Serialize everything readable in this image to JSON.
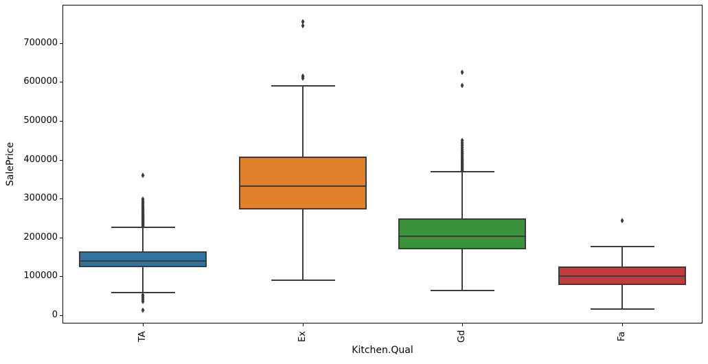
{
  "chart_data": {
    "type": "box",
    "title": "",
    "xlabel": "Kitchen.Qual",
    "ylabel": "SalePrice",
    "ylim": [
      -19400,
      796800
    ],
    "grid": false,
    "legend": "none",
    "line_color": "#3c3a3c",
    "spine_color": "#000000",
    "background_color": "#ffffff",
    "yticks": [
      {
        "value": 0,
        "label": "0"
      },
      {
        "value": 100000,
        "label": "100000"
      },
      {
        "value": 200000,
        "label": "200000"
      },
      {
        "value": 300000,
        "label": "300000"
      },
      {
        "value": 400000,
        "label": "400000"
      },
      {
        "value": 500000,
        "label": "500000"
      },
      {
        "value": 600000,
        "label": "600000"
      },
      {
        "value": 700000,
        "label": "700000"
      }
    ],
    "categories": [
      "TA",
      "Ex",
      "Gd",
      "Fa"
    ],
    "groups": [
      {
        "label": "TA",
        "color": "#3274a1",
        "whisker_low": 58300,
        "q1": 123000,
        "median": 139000,
        "q3": 164000,
        "whisker_high": 227000,
        "outliers": [
          228000,
          230000,
          232000,
          234000,
          236000,
          238000,
          240000,
          242000,
          244000,
          246000,
          248000,
          250000,
          252000,
          254500,
          257000,
          259500,
          262000,
          265000,
          268000,
          271000,
          274000,
          277500,
          281000,
          285000,
          289000,
          293500,
          298500,
          360000,
          52000,
          46500,
          41000,
          35500,
          13100
        ]
      },
      {
        "label": "Ex",
        "color": "#e1812c",
        "whisker_low": 90000,
        "q1": 272000,
        "median": 332000,
        "q3": 409000,
        "whisker_high": 590500,
        "outliers": [
          610000,
          615000,
          745000,
          755000
        ]
      },
      {
        "label": "Gd",
        "color": "#3a923a",
        "whisker_low": 63500,
        "q1": 170000,
        "median": 204000,
        "q3": 248500,
        "whisker_high": 369000,
        "outliers": [
          372500,
          375500,
          378500,
          381500,
          384500,
          387500,
          390500,
          393500,
          397000,
          400500,
          404000,
          408000,
          412000,
          416500,
          421000,
          426000,
          431500,
          437500,
          443500,
          449500,
          591000,
          625000
        ]
      },
      {
        "label": "Fa",
        "color": "#c03d3e",
        "whisker_low": 15900,
        "q1": 77700,
        "median": 100700,
        "q3": 125400,
        "whisker_high": 176700,
        "outliers": [
          243500
        ]
      }
    ]
  }
}
